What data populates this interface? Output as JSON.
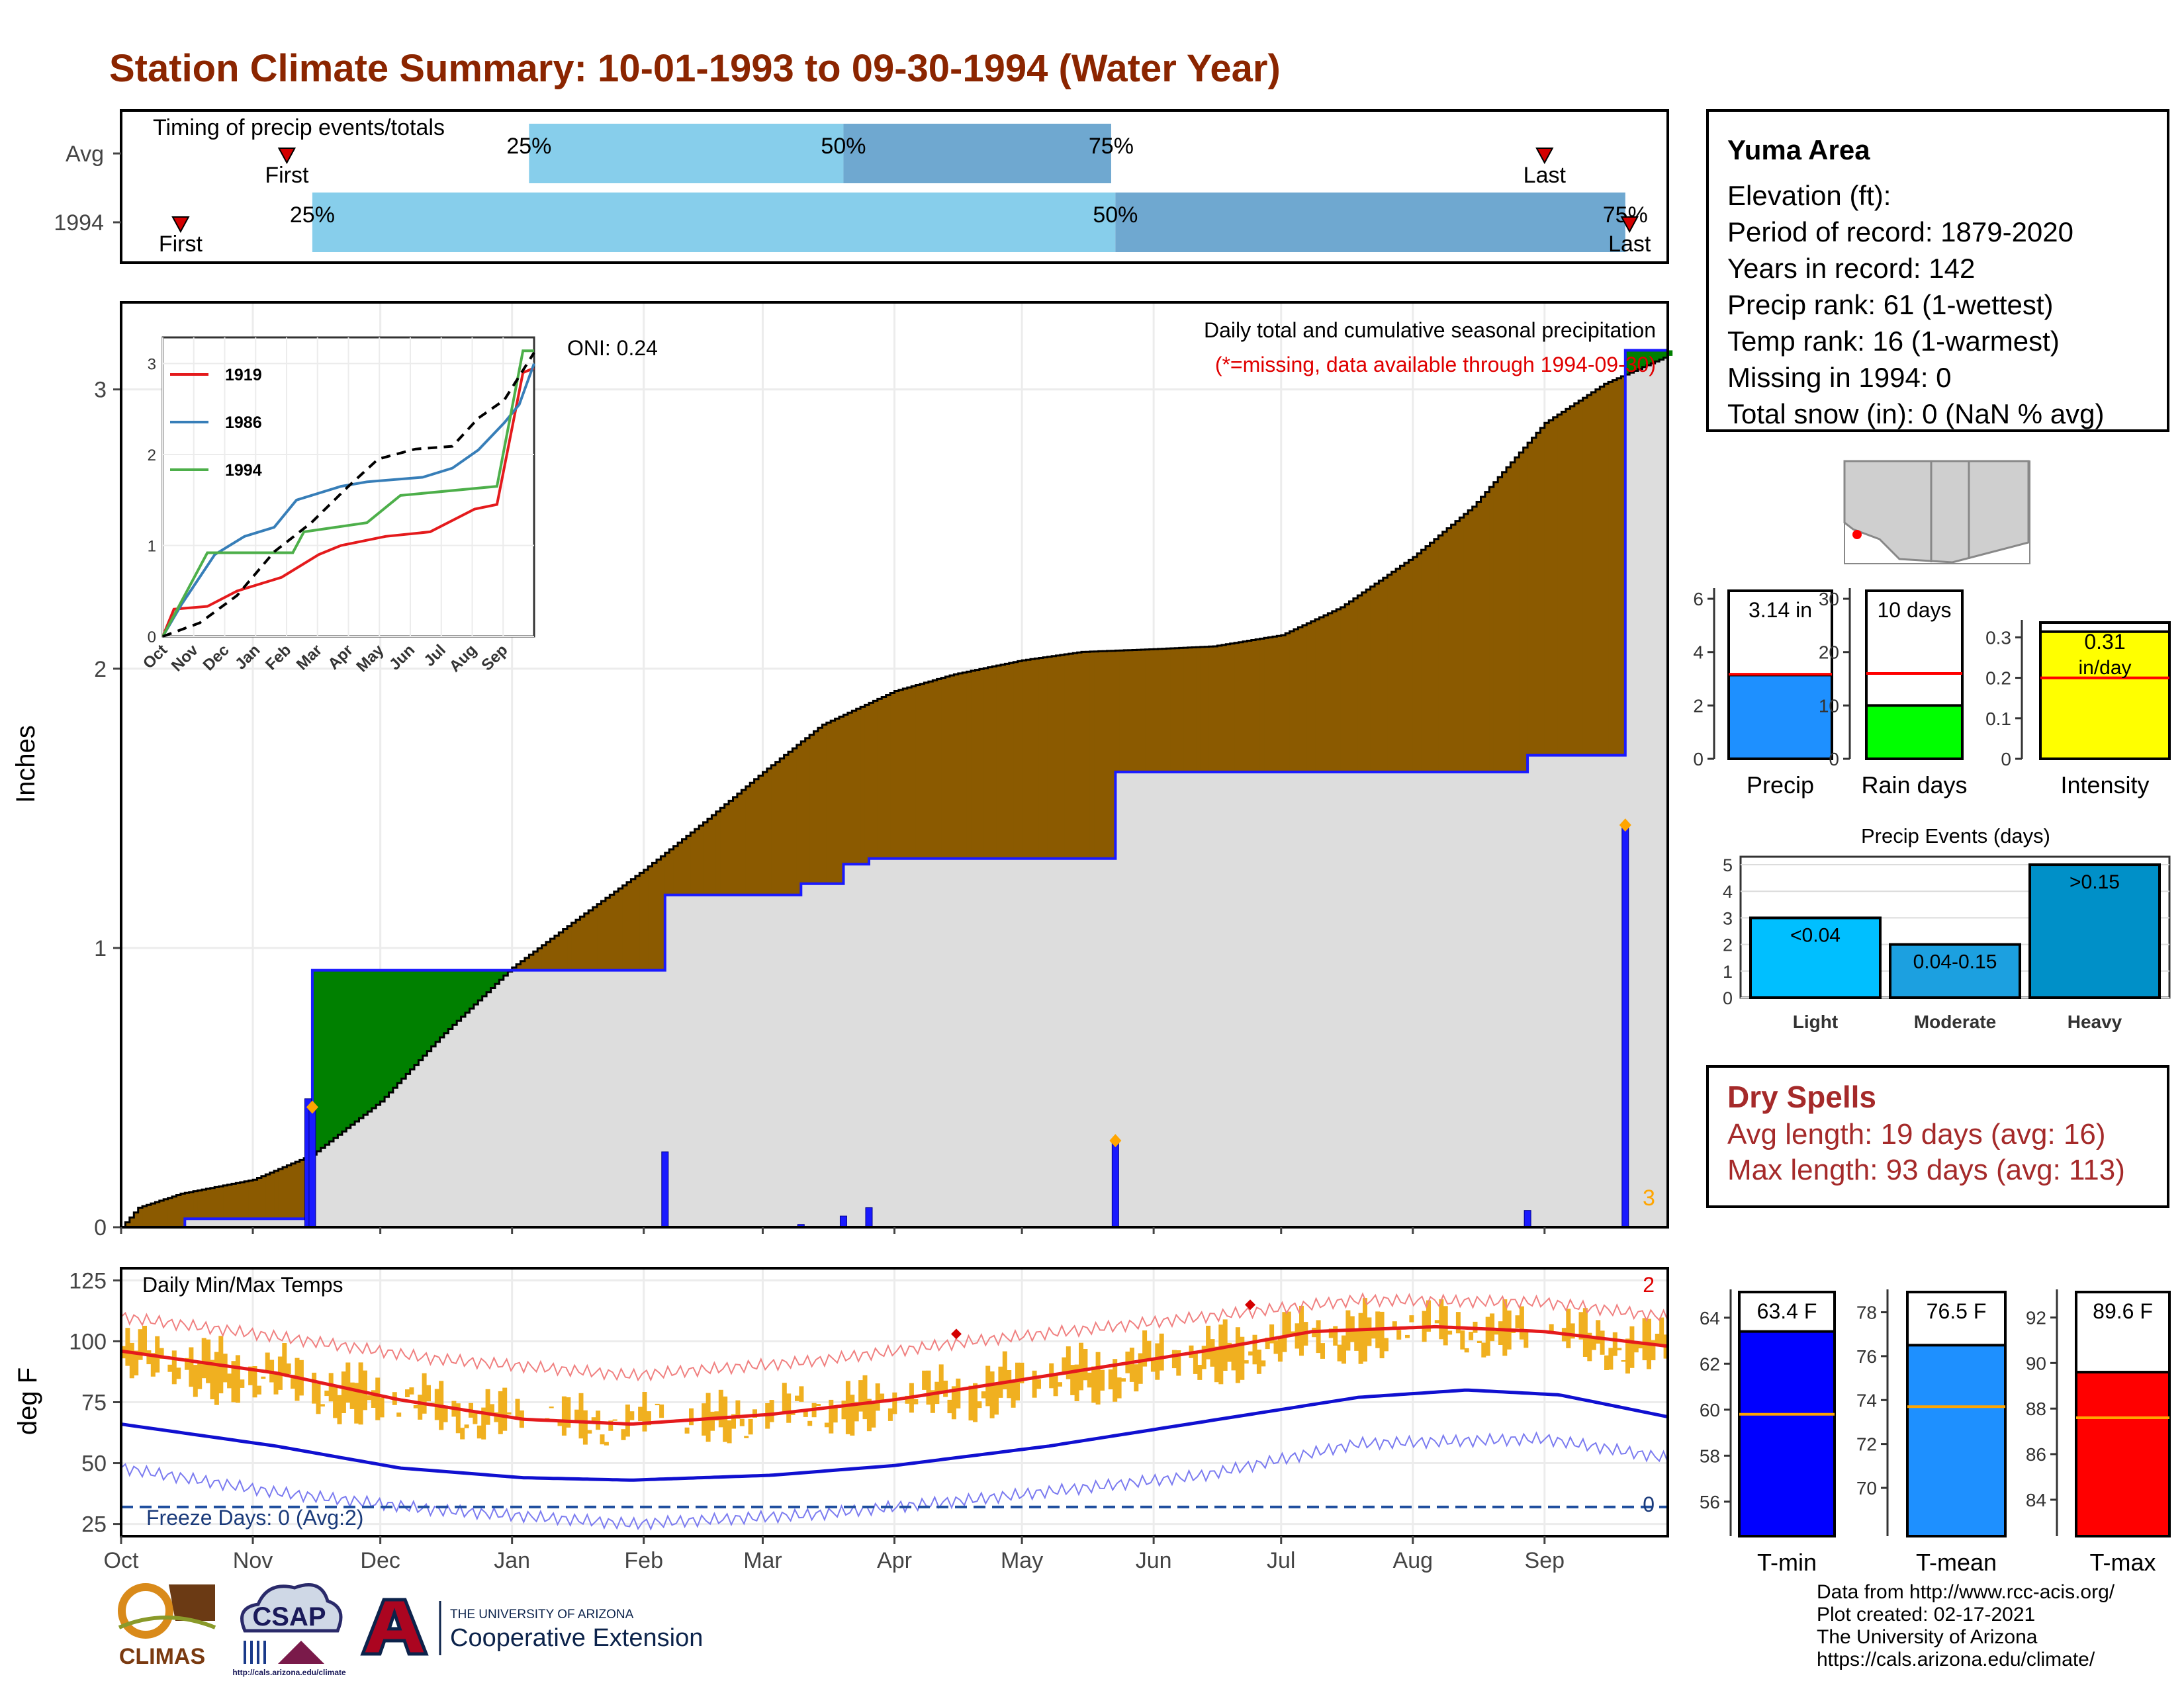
{
  "title": "Station Climate Summary: 10-01-1993 to 09-30-1994 (Water Year)",
  "timing": {
    "title": "Timing of precip events/totals",
    "rows": [
      {
        "label": "Avg",
        "first_date": "1993-11-09",
        "p25_date": "1994-01-05",
        "p50_date": "1994-03-20",
        "p75_date": "1994-05-22",
        "last_date": "1994-09-01",
        "first_label": "First",
        "last_label": "Last"
      },
      {
        "label": "1994",
        "first_date": "1993-10-15",
        "p25_date": "1993-11-15",
        "p50_date": "1994-05-23",
        "p75_date": "1994-09-20",
        "last_date": "1994-09-21",
        "first_label": "First",
        "last_label": "Last"
      }
    ],
    "pct_labels": [
      "25%",
      "50%",
      "75%"
    ],
    "colors": {
      "light": "#87ceeb",
      "dark": "#6fa8d0",
      "marker": "#d40000"
    }
  },
  "chart_data": [
    {
      "id": "cumulative",
      "type": "area",
      "title": "Daily total and cumulative seasonal precipitation",
      "subtitle": "(*=missing, data available through 1994-09-30)",
      "ylabel": "Inches",
      "oni": "ONI: 0.24",
      "ylim": [
        0,
        3.3
      ],
      "yticks": [
        0,
        1,
        2,
        3
      ],
      "xlim": [
        "1993-10-01",
        "1994-09-30"
      ],
      "month_ticks": [
        {
          "label": "Oct",
          "date": "1993-10-01"
        },
        {
          "label": "Nov",
          "date": "1993-11-01"
        },
        {
          "label": "Dec",
          "date": "1993-12-01"
        },
        {
          "label": "Jan",
          "date": "1994-01-01"
        },
        {
          "label": "Feb",
          "date": "1994-02-01"
        },
        {
          "label": "Mar",
          "date": "1994-03-01"
        },
        {
          "label": "Apr",
          "date": "1994-04-01"
        },
        {
          "label": "May",
          "date": "1994-05-01"
        },
        {
          "label": "Jun",
          "date": "1994-06-01"
        },
        {
          "label": "Jul",
          "date": "1994-07-01"
        },
        {
          "label": "Aug",
          "date": "1994-08-01"
        },
        {
          "label": "Sep",
          "date": "1994-09-01"
        }
      ],
      "avg_cumulative": [
        [
          "1993-10-01",
          0
        ],
        [
          "1993-10-05",
          0.07
        ],
        [
          "1993-10-15",
          0.12
        ],
        [
          "1993-11-01",
          0.17
        ],
        [
          "1993-11-15",
          0.26
        ],
        [
          "1993-12-01",
          0.45
        ],
        [
          "1993-12-15",
          0.68
        ],
        [
          "1994-01-01",
          0.93
        ],
        [
          "1994-01-15",
          1.09
        ],
        [
          "1994-02-01",
          1.28
        ],
        [
          "1994-02-15",
          1.45
        ],
        [
          "1994-03-01",
          1.63
        ],
        [
          "1994-03-15",
          1.8
        ],
        [
          "1994-04-01",
          1.92
        ],
        [
          "1994-04-15",
          1.98
        ],
        [
          "1994-05-01",
          2.03
        ],
        [
          "1994-05-15",
          2.06
        ],
        [
          "1994-06-01",
          2.07
        ],
        [
          "1994-06-15",
          2.08
        ],
        [
          "1994-07-01",
          2.12
        ],
        [
          "1994-07-15",
          2.22
        ],
        [
          "1994-08-01",
          2.4
        ],
        [
          "1994-08-15",
          2.58
        ],
        [
          "1994-09-01",
          2.88
        ],
        [
          "1994-09-15",
          3.02
        ],
        [
          "1994-09-30",
          3.12
        ]
      ],
      "cumulative_1994": [
        [
          "1993-10-01",
          0
        ],
        [
          "1993-10-16",
          0.03
        ],
        [
          "1993-11-15",
          0.92
        ],
        [
          "1994-01-01",
          0.92
        ],
        [
          "1994-01-29",
          0.92
        ],
        [
          "1994-02-06",
          1.19
        ],
        [
          "1994-03-10",
          1.23
        ],
        [
          "1994-03-20",
          1.3
        ],
        [
          "1994-03-26",
          1.32
        ],
        [
          "1994-05-23",
          1.63
        ],
        [
          "1994-08-28",
          1.69
        ],
        [
          "1994-09-20",
          3.14
        ],
        [
          "1994-09-30",
          3.14
        ]
      ],
      "daily_precip": [
        {
          "date": "1993-11-14",
          "value": 0.46
        },
        {
          "date": "1993-11-15",
          "value": 0.43
        },
        {
          "date": "1994-02-06",
          "value": 0.27
        },
        {
          "date": "1994-03-10",
          "value": 0.01
        },
        {
          "date": "1994-03-20",
          "value": 0.04
        },
        {
          "date": "1994-03-26",
          "value": 0.07
        },
        {
          "date": "1994-05-23",
          "value": 0.31
        },
        {
          "date": "1994-08-28",
          "value": 0.06
        },
        {
          "date": "1994-09-20",
          "value": 1.44
        }
      ],
      "extreme_markers": [
        "1993-11-15",
        "1994-05-23",
        "1994-09-20"
      ],
      "extreme_count_label": "3",
      "colors": {
        "above": "#8b5a00",
        "below": "#008000",
        "bar": "#1a1aff",
        "fill": "#dddddd",
        "marker": "#ffa500"
      }
    },
    {
      "id": "inset",
      "type": "line",
      "xlim": [
        "1993-10-01",
        "1994-09-30"
      ],
      "ylim": [
        0,
        3.2
      ],
      "yticks": [
        0,
        1,
        2,
        3
      ],
      "month_labels": [
        "Oct",
        "Nov",
        "Dec",
        "Jan",
        "Feb",
        "Mar",
        "Apr",
        "May",
        "Jun",
        "Jul",
        "Aug",
        "Sep"
      ],
      "series": [
        {
          "name": "1919",
          "color": "#e41a1c",
          "points": [
            [
              0,
              0
            ],
            [
              0.03,
              0.3
            ],
            [
              0.12,
              0.33
            ],
            [
              0.2,
              0.5
            ],
            [
              0.32,
              0.65
            ],
            [
              0.42,
              0.9
            ],
            [
              0.48,
              1.0
            ],
            [
              0.6,
              1.1
            ],
            [
              0.72,
              1.15
            ],
            [
              0.84,
              1.4
            ],
            [
              0.9,
              1.45
            ],
            [
              0.97,
              2.9
            ],
            [
              1.0,
              2.95
            ]
          ]
        },
        {
          "name": "1986",
          "color": "#377eb8",
          "points": [
            [
              0,
              0
            ],
            [
              0.05,
              0.35
            ],
            [
              0.14,
              0.9
            ],
            [
              0.22,
              1.1
            ],
            [
              0.3,
              1.2
            ],
            [
              0.36,
              1.5
            ],
            [
              0.48,
              1.65
            ],
            [
              0.55,
              1.7
            ],
            [
              0.7,
              1.75
            ],
            [
              0.78,
              1.85
            ],
            [
              0.85,
              2.05
            ],
            [
              0.92,
              2.35
            ],
            [
              0.96,
              2.55
            ],
            [
              1.0,
              3.0
            ]
          ]
        },
        {
          "name": "1994",
          "color": "#4daf4a",
          "points": [
            [
              0,
              0
            ],
            [
              0.12,
              0.92
            ],
            [
              0.35,
              0.92
            ],
            [
              0.38,
              1.15
            ],
            [
              0.55,
              1.25
            ],
            [
              0.64,
              1.55
            ],
            [
              0.9,
              1.65
            ],
            [
              0.97,
              3.14
            ],
            [
              1.0,
              3.14
            ]
          ]
        },
        {
          "name": "",
          "color": "#000000",
          "dashed": true,
          "points": [
            [
              0,
              0
            ],
            [
              0.1,
              0.15
            ],
            [
              0.2,
              0.45
            ],
            [
              0.3,
              0.93
            ],
            [
              0.4,
              1.25
            ],
            [
              0.5,
              1.65
            ],
            [
              0.58,
              1.95
            ],
            [
              0.68,
              2.06
            ],
            [
              0.78,
              2.09
            ],
            [
              0.85,
              2.4
            ],
            [
              0.92,
              2.6
            ],
            [
              1.0,
              3.12
            ]
          ]
        }
      ]
    },
    {
      "id": "temps",
      "type": "line",
      "title": "Daily Min/Max Temps",
      "ylabel": "deg F",
      "ylim": [
        20,
        130
      ],
      "yticks": [
        25,
        50,
        75,
        100,
        125
      ],
      "freeze_label": "Freeze Days: 0 (Avg:2)",
      "freeze_count": "0",
      "record_count": "2",
      "freeze_line": 32,
      "normal_max": [
        [
          0,
          96
        ],
        [
          0.1,
          87
        ],
        [
          0.18,
          76
        ],
        [
          0.26,
          68
        ],
        [
          0.33,
          66
        ],
        [
          0.42,
          70
        ],
        [
          0.5,
          76
        ],
        [
          0.6,
          86
        ],
        [
          0.7,
          96
        ],
        [
          0.77,
          104
        ],
        [
          0.85,
          106
        ],
        [
          0.92,
          104
        ],
        [
          1.0,
          98
        ]
      ],
      "normal_min": [
        [
          0,
          66
        ],
        [
          0.1,
          57
        ],
        [
          0.18,
          48
        ],
        [
          0.26,
          44
        ],
        [
          0.33,
          43
        ],
        [
          0.42,
          45
        ],
        [
          0.5,
          49
        ],
        [
          0.6,
          57
        ],
        [
          0.7,
          67
        ],
        [
          0.8,
          77
        ],
        [
          0.87,
          80
        ],
        [
          0.93,
          78
        ],
        [
          1.0,
          69
        ]
      ],
      "record_max": [
        [
          0,
          110
        ],
        [
          0.1,
          102
        ],
        [
          0.2,
          93
        ],
        [
          0.33,
          86
        ],
        [
          0.45,
          92
        ],
        [
          0.55,
          100
        ],
        [
          0.7,
          110
        ],
        [
          0.8,
          117
        ],
        [
          0.92,
          116
        ],
        [
          1.0,
          110
        ]
      ],
      "record_min": [
        [
          0,
          48
        ],
        [
          0.1,
          38
        ],
        [
          0.2,
          31
        ],
        [
          0.33,
          25
        ],
        [
          0.45,
          29
        ],
        [
          0.55,
          35
        ],
        [
          0.7,
          45
        ],
        [
          0.8,
          58
        ],
        [
          0.92,
          60
        ],
        [
          1.0,
          52
        ]
      ],
      "record_markers": [
        [
          0.54,
          103
        ],
        [
          0.73,
          115
        ]
      ],
      "colors": {
        "range": "#f0b020",
        "max": "#e41a1c",
        "min": "#1010d0",
        "freeze": "#1f4e9e"
      }
    },
    {
      "id": "mini-precip",
      "type": "bar",
      "ylim": [
        0,
        6.2
      ],
      "yticks": [
        0,
        2,
        4,
        6
      ],
      "value": 3.14,
      "avg": 3.17,
      "value_label": "3.14 in",
      "xlabel": "Precip",
      "color": "#1e90ff"
    },
    {
      "id": "mini-raindays",
      "type": "bar",
      "ylim": [
        0,
        31
      ],
      "yticks": [
        0,
        10,
        20,
        30
      ],
      "value": 10,
      "avg": 16,
      "value_label": "10 days",
      "xlabel": "Rain days",
      "color": "#00ff00"
    },
    {
      "id": "mini-intensity",
      "type": "bar",
      "ylim": [
        0,
        0.33
      ],
      "yticks": [
        0.0,
        0.1,
        0.2,
        0.3
      ],
      "value": 0.314,
      "avg": 0.2,
      "value_label": "0.31",
      "value_label2": "in/day",
      "xlabel": "Intensity",
      "color": "#ffff00"
    },
    {
      "id": "events",
      "type": "bar",
      "title": "Precip Events (days)",
      "ylim": [
        0,
        5.3
      ],
      "yticks": [
        0,
        1,
        2,
        3,
        4,
        5
      ],
      "categories": [
        "Light",
        "Moderate",
        "Heavy"
      ],
      "values": [
        3,
        2,
        5
      ],
      "bar_labels": [
        "<0.04",
        "0.04-0.15",
        ">0.15"
      ],
      "colors": [
        "#00bfff",
        "#1ca0e0",
        "#0090c8"
      ]
    },
    {
      "id": "tmin",
      "type": "bar",
      "ylim": [
        54.5,
        65
      ],
      "yticks": [
        56,
        58,
        60,
        62,
        64
      ],
      "value": 63.4,
      "avg": 59.8,
      "value_label": "63.4 F",
      "xlabel": "T-min",
      "color": "#0000ff"
    },
    {
      "id": "tmean",
      "type": "bar",
      "ylim": [
        67.8,
        78.8
      ],
      "yticks": [
        70,
        72,
        74,
        76,
        78
      ],
      "value": 76.5,
      "avg": 73.7,
      "value_label": "76.5 F",
      "xlabel": "T-mean",
      "color": "#1e90ff"
    },
    {
      "id": "tmax",
      "type": "bar",
      "ylim": [
        82.4,
        93
      ],
      "yticks": [
        84,
        86,
        88,
        90,
        92
      ],
      "value": 89.6,
      "avg": 87.6,
      "value_label": "89.6 F",
      "xlabel": "T-max",
      "color": "#ff0000"
    }
  ],
  "station": {
    "name": "Yuma Area",
    "lines": [
      "Elevation (ft):",
      "Period of record: 1879-2020",
      "Years in record: 142",
      "Precip rank: 61 (1-wettest)",
      "Temp rank: 16 (1-warmest)",
      "Missing in 1994: 0",
      "Total snow (in): 0 (NaN % avg)"
    ]
  },
  "dry_spells": {
    "title": "Dry Spells",
    "avg_line": "Avg length: 19 days (avg: 16)",
    "max_line": "Max length: 93 days (avg: 113)"
  },
  "credits": {
    "lines": [
      "Data from http://www.rcc-acis.org/",
      "Plot created: 02-17-2021",
      "The University of Arizona",
      "https://cals.arizona.edu/climate/"
    ]
  },
  "logos": {
    "climas": "CLIMAS",
    "csap": "CSAP",
    "csap_url": "http://cals.arizona.edu/climate",
    "ua_small": "THE UNIVERSITY OF ARIZONA",
    "ua_big": "Cooperative Extension"
  }
}
